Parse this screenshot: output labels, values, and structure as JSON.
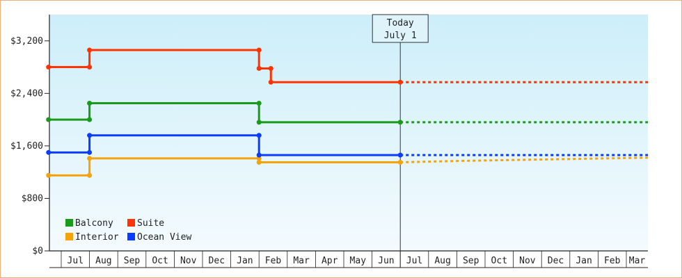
{
  "chart_data": {
    "type": "line",
    "line_style": "step",
    "y_axis": {
      "ylim": [
        0,
        3600
      ],
      "ticks": [
        0,
        800,
        1600,
        2400,
        3200
      ],
      "tick_labels": [
        "$0",
        "$800",
        "$1,600",
        "$2,400",
        "$3,200"
      ]
    },
    "x_axis": {
      "months": [
        "Jul",
        "Aug",
        "Sep",
        "Oct",
        "Nov",
        "Dec",
        "Jan",
        "Feb",
        "Mar",
        "Apr",
        "May",
        "Jun",
        "Jul",
        "Aug",
        "Sep",
        "Oct",
        "Nov",
        "Dec",
        "Jan",
        "Feb",
        "Mar"
      ]
    },
    "today_marker": {
      "line1": "Today",
      "line2": "July 1",
      "x": 12.0
    },
    "legend": {
      "position": "bottom-left"
    },
    "colors": {
      "background_top": "#cdeef9",
      "background_bottom": "#f4fbfe",
      "axis": "#222222",
      "frame": "#e8b27a"
    },
    "series": [
      {
        "name": "Balcony",
        "color": "#1a9a1a",
        "points": [
          [
            -0.45,
            2000
          ],
          [
            1.0,
            2000
          ],
          [
            1.0,
            2250
          ],
          [
            7.0,
            2250
          ],
          [
            7.0,
            1960
          ],
          [
            12.0,
            1960
          ]
        ],
        "forecast": [
          [
            12.0,
            1960
          ],
          [
            21.0,
            1960
          ]
        ]
      },
      {
        "name": "Suite",
        "color": "#ff3300",
        "points": [
          [
            -0.45,
            2800
          ],
          [
            1.0,
            2800
          ],
          [
            1.0,
            3060
          ],
          [
            7.0,
            3060
          ],
          [
            7.0,
            2780
          ],
          [
            7.42,
            2780
          ],
          [
            7.42,
            2570
          ],
          [
            12.0,
            2570
          ]
        ],
        "forecast": [
          [
            12.0,
            2570
          ],
          [
            21.0,
            2570
          ]
        ]
      },
      {
        "name": "Interior",
        "color": "#f5a30a",
        "points": [
          [
            -0.45,
            1150
          ],
          [
            1.0,
            1150
          ],
          [
            1.0,
            1410
          ],
          [
            7.0,
            1410
          ],
          [
            7.0,
            1350
          ],
          [
            12.0,
            1350
          ]
        ],
        "forecast": [
          [
            12.0,
            1350
          ],
          [
            14.0,
            1370
          ],
          [
            18.0,
            1400
          ],
          [
            21.0,
            1420
          ]
        ]
      },
      {
        "name": "Ocean View",
        "color": "#0a3cff",
        "points": [
          [
            -0.45,
            1500
          ],
          [
            1.0,
            1500
          ],
          [
            1.0,
            1760
          ],
          [
            7.0,
            1760
          ],
          [
            7.0,
            1460
          ],
          [
            12.0,
            1460
          ]
        ],
        "forecast": [
          [
            12.0,
            1460
          ],
          [
            21.0,
            1460
          ]
        ]
      }
    ]
  }
}
